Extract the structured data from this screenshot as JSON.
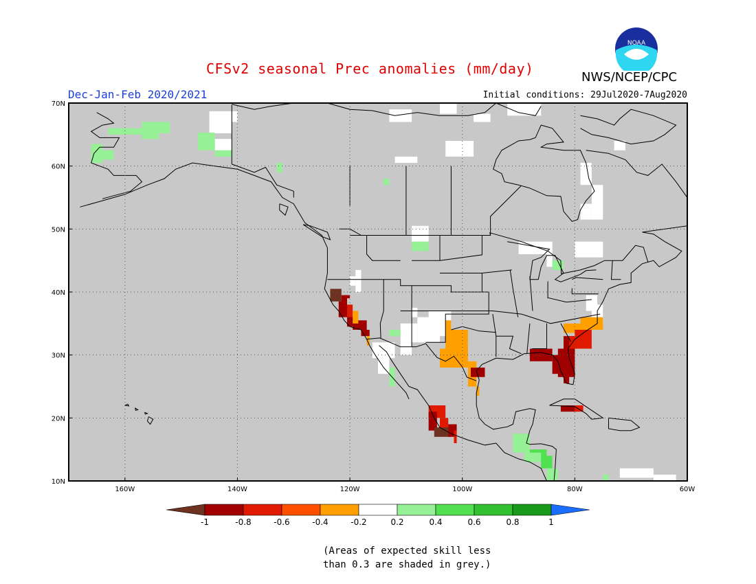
{
  "header": {
    "title": "CFSv2 seasonal Prec anomalies (mm/day)",
    "org": "NWS/NCEP/CPC",
    "season": "Dec-Jan-Feb 2020/2021",
    "initial_conditions": "Initial conditions: 29Jul2020-7Aug2020"
  },
  "logo": {
    "text": "NOAA"
  },
  "map": {
    "lon_range": [
      -170,
      -60
    ],
    "lat_range": [
      10,
      70
    ],
    "lat_ticks": [
      "10N",
      "20N",
      "30N",
      "40N",
      "50N",
      "60N",
      "70N"
    ],
    "lon_ticks": [
      "160W",
      "140W",
      "120W",
      "100W",
      "80W",
      "60W"
    ],
    "colors": {
      "grey": "#c8c8c8",
      "white": "#ffffff",
      "lightgreen": "#96f096",
      "green": "#50e050",
      "darkred": "#a00000",
      "brown": "#6e3320",
      "red": "#e01a00",
      "orangered": "#ff5000",
      "orange": "#ffa000"
    }
  },
  "colorbar": {
    "labels": [
      "-1",
      "-0.8",
      "-0.6",
      "-0.4",
      "-0.2",
      "0.2",
      "0.4",
      "0.6",
      "0.8",
      "1"
    ],
    "colors": [
      "#6e3320",
      "#a00000",
      "#e01a00",
      "#ff5000",
      "#ffa000",
      "#ffffff",
      "#96f096",
      "#50e050",
      "#30c030",
      "#1a9a1a",
      "#1a6eff"
    ]
  },
  "note": {
    "line1": "(Areas of expected skill less",
    "line2": "than 0.3 are shaded in grey.)"
  }
}
